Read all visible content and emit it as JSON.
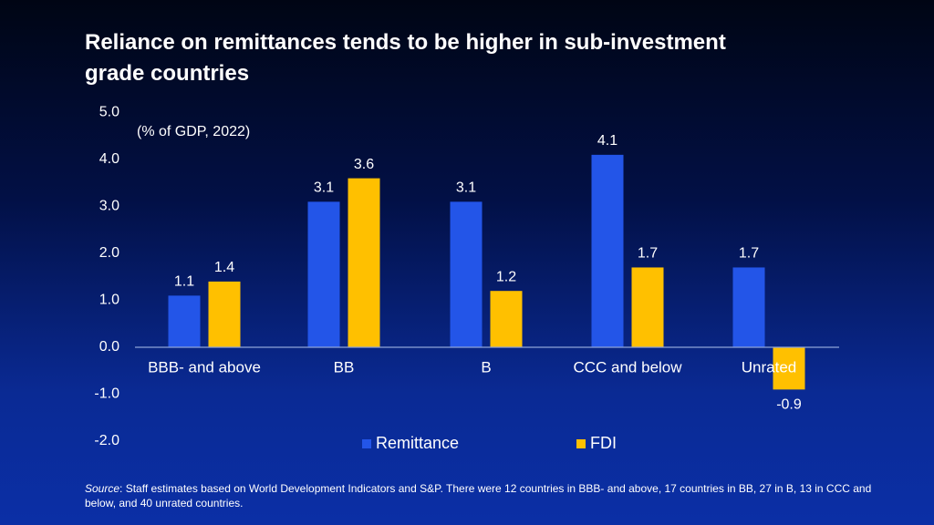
{
  "title_lines": [
    "Reliance on remittances tends to be higher in sub-investment",
    "grade countries"
  ],
  "chart_data": {
    "type": "bar",
    "subtitle": "(% of GDP, 2022)",
    "categories": [
      "BBB- and above",
      "BB",
      "B",
      "CCC and below",
      "Unrated"
    ],
    "series": [
      {
        "name": "Remittance",
        "color": "#2355e8",
        "values": [
          1.1,
          3.1,
          3.1,
          4.1,
          1.7
        ]
      },
      {
        "name": "FDI",
        "color": "#ffc000",
        "values": [
          1.4,
          3.6,
          1.2,
          1.7,
          -0.9
        ]
      }
    ],
    "yticks": [
      "5.0",
      "4.0",
      "3.0",
      "2.0",
      "1.0",
      "0.0",
      "-1.0",
      "-2.0"
    ],
    "ylim": [
      -2.0,
      5.0
    ],
    "grid": false,
    "legend_position": "bottom"
  },
  "footnote": {
    "source_label": "Source",
    "text": ": Staff estimates based on World Development Indicators and S&P. There were 12 countries in BBB- and above, 17 countries in BB, 27 in B, 13 in CCC and below, and 40 unrated countries."
  }
}
